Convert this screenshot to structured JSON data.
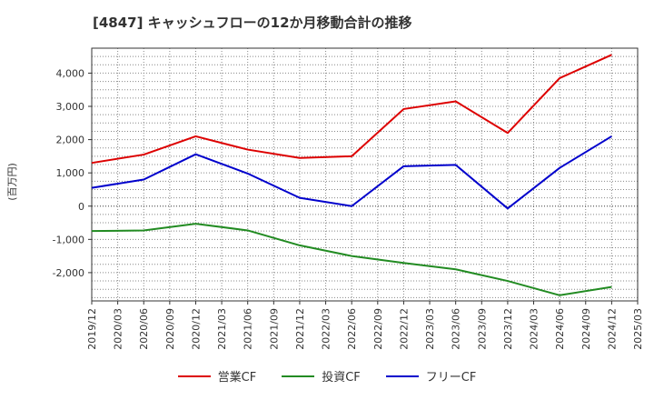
{
  "chart_data": {
    "type": "line",
    "title": "[4847]  キャッシュフローの12か月移動合計の推移",
    "ylabel": "(百万円)",
    "xlabel": "",
    "ylim": [
      -2850,
      4750
    ],
    "y_ticks": [
      -2000,
      -1000,
      0,
      1000,
      2000,
      3000,
      4000
    ],
    "y_tick_labels": [
      "-2,000",
      "-1,000",
      "0",
      "1,000",
      "2,000",
      "3,000",
      "4,000"
    ],
    "x_tick_labels": [
      "2019/12",
      "2020/03",
      "2020/06",
      "2020/09",
      "2020/12",
      "2021/03",
      "2021/06",
      "2021/09",
      "2021/12",
      "2022/03",
      "2022/06",
      "2022/09",
      "2022/12",
      "2023/03",
      "2023/06",
      "2023/09",
      "2023/12",
      "2024/03",
      "2024/06",
      "2024/09",
      "2024/12",
      "2025/03"
    ],
    "x": [
      "2019/12",
      "2020/06",
      "2020/12",
      "2021/06",
      "2021/12",
      "2022/06",
      "2022/12",
      "2023/06",
      "2023/12",
      "2024/06",
      "2024/12"
    ],
    "grid": true,
    "legend_position": "bottom",
    "series": [
      {
        "name": "営業CF",
        "color": "#dd0000",
        "values": [
          1300,
          1550,
          2100,
          1700,
          1450,
          1500,
          2920,
          3150,
          2200,
          3850,
          4550
        ]
      },
      {
        "name": "投資CF",
        "color": "#228b22",
        "values": [
          -750,
          -730,
          -530,
          -730,
          -1180,
          -1500,
          -1710,
          -1900,
          -2250,
          -2680,
          -2430
        ]
      },
      {
        "name": "フリーCF",
        "color": "#0000cc",
        "values": [
          550,
          800,
          1560,
          980,
          250,
          0,
          1200,
          1240,
          -70,
          1150,
          2100
        ]
      }
    ]
  }
}
